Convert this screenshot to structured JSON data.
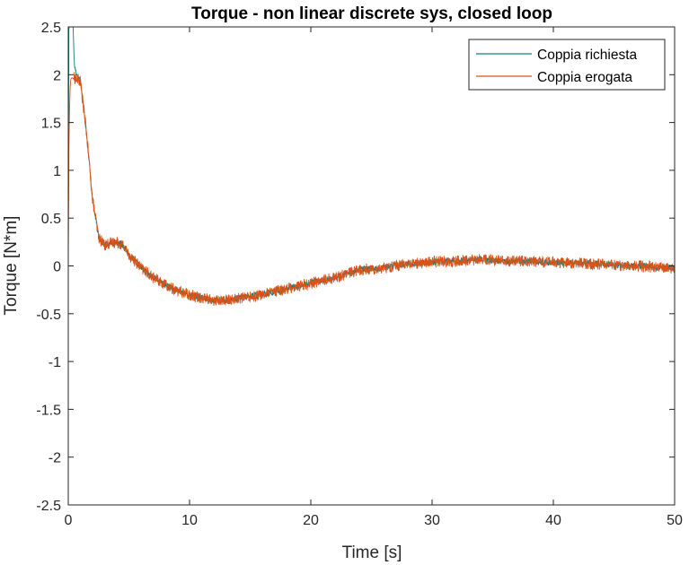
{
  "chart_data": {
    "type": "line",
    "title": "Torque - non linear discrete sys, closed loop",
    "xlabel": "Time [s]",
    "ylabel": "Torque [N*m]",
    "xlim": [
      0,
      50
    ],
    "ylim": [
      -2.5,
      2.5
    ],
    "xticks": [
      0,
      10,
      20,
      30,
      40,
      50
    ],
    "xtick_labels": [
      "0",
      "10",
      "20",
      "30",
      "40",
      "50"
    ],
    "yticks": [
      -2.5,
      -2,
      -1.5,
      -1,
      -0.5,
      0,
      0.5,
      1,
      1.5,
      2,
      2.5
    ],
    "ytick_labels": [
      "-2.5",
      "-2",
      "-1.5",
      "-1",
      "-0.5",
      "0",
      "0.5",
      "1",
      "1.5",
      "2",
      "2.5"
    ],
    "grid": false,
    "legend_position": "top-right",
    "series": [
      {
        "name": "Coppia richiesta",
        "color": "#0f7f7f",
        "noise": 0.035,
        "x": [
          0,
          0.05,
          0.1,
          0.15,
          0.2,
          0.3,
          0.4,
          0.5,
          0.7,
          1.0,
          1.5,
          2.0,
          2.5,
          3.0,
          3.5,
          4.0,
          4.5,
          5.0,
          6.0,
          7.0,
          8.0,
          9.0,
          10.0,
          11.0,
          12.0,
          13.0,
          14.0,
          15.0,
          16.0,
          17.0,
          18.0,
          19.0,
          20.0,
          21.0,
          22.0,
          23.0,
          24.0,
          25.0,
          26.0,
          27.0,
          28.0,
          29.0,
          30.0,
          31.0,
          32.0,
          33.0,
          34.0,
          35.0,
          36.0,
          37.0,
          38.0,
          39.0,
          40.0,
          41.0,
          42.0,
          43.0,
          44.0,
          45.0,
          46.0,
          47.0,
          48.0,
          49.0,
          50.0
        ],
        "y": [
          0.1,
          2.5,
          2.5,
          2.5,
          2.5,
          2.5,
          2.5,
          2.1,
          2.0,
          1.95,
          1.4,
          0.7,
          0.3,
          0.22,
          0.24,
          0.25,
          0.22,
          0.12,
          -0.02,
          -0.12,
          -0.2,
          -0.26,
          -0.3,
          -0.33,
          -0.36,
          -0.36,
          -0.34,
          -0.32,
          -0.3,
          -0.27,
          -0.24,
          -0.21,
          -0.18,
          -0.15,
          -0.12,
          -0.08,
          -0.04,
          -0.03,
          -0.02,
          0.0,
          0.02,
          0.03,
          0.04,
          0.05,
          0.05,
          0.06,
          0.07,
          0.06,
          0.05,
          0.05,
          0.05,
          0.04,
          0.04,
          0.03,
          0.03,
          0.02,
          0.02,
          0.01,
          0.0,
          0.0,
          -0.01,
          -0.02,
          -0.02
        ]
      },
      {
        "name": "Coppia erogata",
        "color": "#d95319",
        "noise": 0.06,
        "x": [
          0,
          0.05,
          0.1,
          0.15,
          0.2,
          0.3,
          0.4,
          0.5,
          0.7,
          1.0,
          1.5,
          2.0,
          2.5,
          3.0,
          3.5,
          4.0,
          4.5,
          5.0,
          6.0,
          7.0,
          8.0,
          9.0,
          10.0,
          11.0,
          12.0,
          13.0,
          14.0,
          15.0,
          16.0,
          17.0,
          18.0,
          19.0,
          20.0,
          21.0,
          22.0,
          23.0,
          24.0,
          25.0,
          26.0,
          27.0,
          28.0,
          29.0,
          30.0,
          31.0,
          32.0,
          33.0,
          34.0,
          35.0,
          36.0,
          37.0,
          38.0,
          39.0,
          40.0,
          41.0,
          42.0,
          43.0,
          44.0,
          45.0,
          46.0,
          47.0,
          48.0,
          49.0,
          50.0
        ],
        "y": [
          0.0,
          1.2,
          1.6,
          1.85,
          1.95,
          1.97,
          1.96,
          1.97,
          1.95,
          1.93,
          1.4,
          0.7,
          0.3,
          0.22,
          0.24,
          0.25,
          0.22,
          0.12,
          -0.02,
          -0.12,
          -0.2,
          -0.26,
          -0.3,
          -0.33,
          -0.36,
          -0.36,
          -0.34,
          -0.32,
          -0.3,
          -0.27,
          -0.24,
          -0.21,
          -0.18,
          -0.15,
          -0.12,
          -0.08,
          -0.04,
          -0.03,
          -0.02,
          0.0,
          0.02,
          0.03,
          0.04,
          0.05,
          0.05,
          0.06,
          0.07,
          0.06,
          0.05,
          0.05,
          0.05,
          0.04,
          0.04,
          0.03,
          0.03,
          0.02,
          0.02,
          0.01,
          0.0,
          0.0,
          -0.01,
          -0.02,
          -0.02
        ]
      }
    ]
  }
}
